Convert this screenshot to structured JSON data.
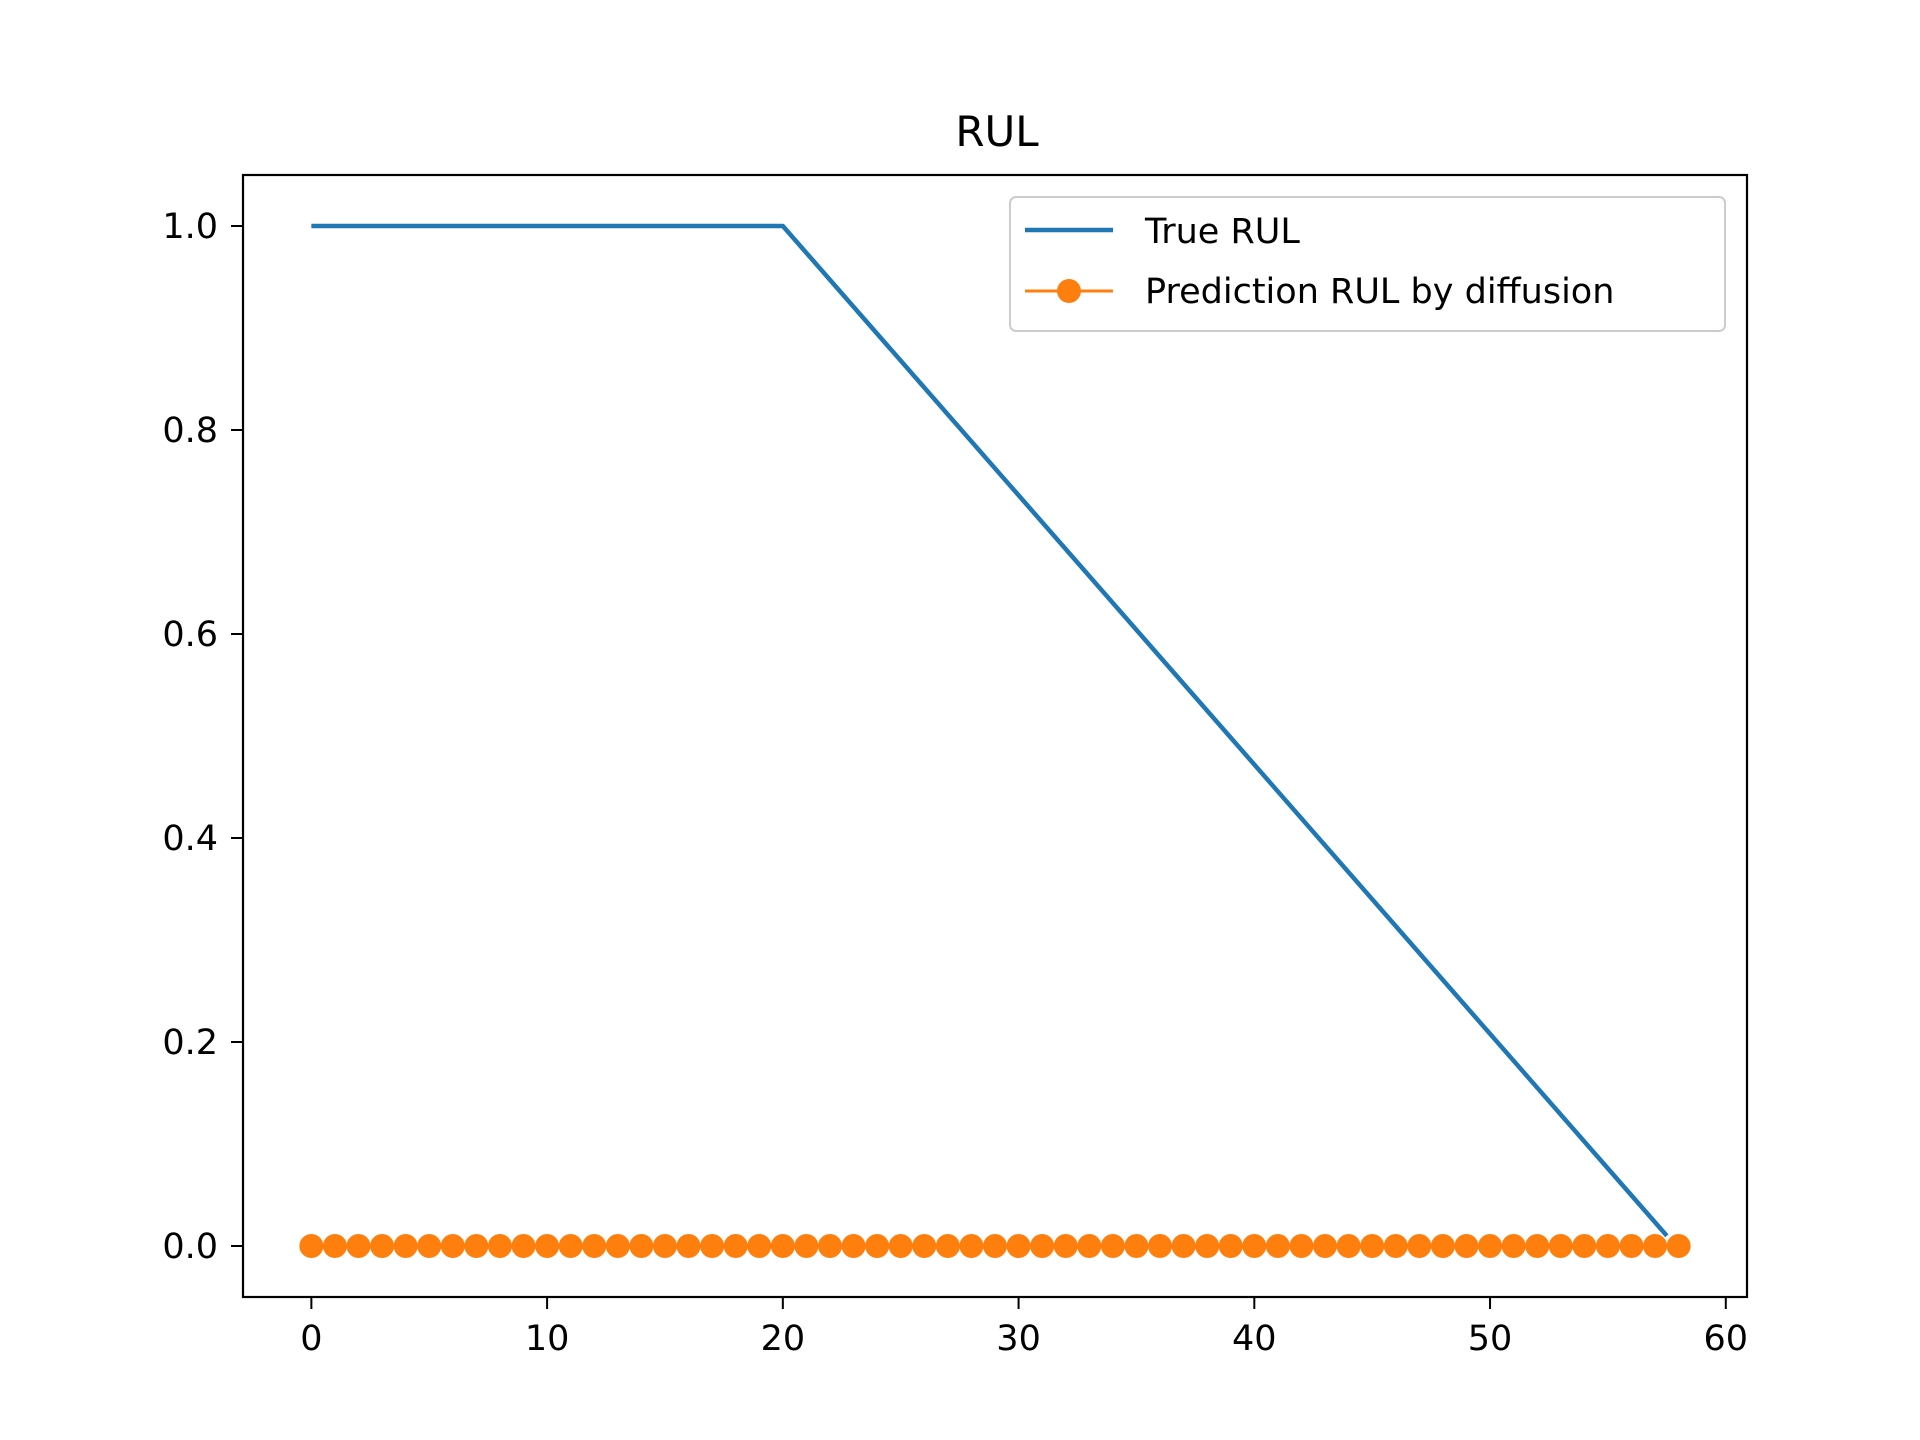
{
  "chart_data": {
    "type": "line",
    "title": "RUL",
    "xlabel": "",
    "ylabel": "",
    "xlim": [
      -2.9,
      60.9
    ],
    "ylim": [
      -0.05,
      1.05
    ],
    "xticks": [
      0,
      10,
      20,
      30,
      40,
      50,
      60
    ],
    "xtick_labels": [
      "0",
      "10",
      "20",
      "30",
      "40",
      "50",
      "60"
    ],
    "yticks": [
      0.0,
      0.2,
      0.4,
      0.6,
      0.8,
      1.0
    ],
    "ytick_labels": [
      "0.0",
      "0.2",
      "0.4",
      "0.6",
      "0.8",
      "1.0"
    ],
    "grid": false,
    "legend_position": "top-right",
    "series": [
      {
        "name": "True RUL",
        "color": "#1f77b4",
        "marker": "none",
        "x": [
          0,
          20,
          57.5
        ],
        "y": [
          1.0,
          1.0,
          0.01
        ]
      },
      {
        "name": "Prediction RUL by diffusion",
        "color": "#ff7f0e",
        "marker": "circle",
        "x": [
          0,
          1,
          2,
          3,
          4,
          5,
          6,
          7,
          8,
          9,
          10,
          11,
          12,
          13,
          14,
          15,
          16,
          17,
          18,
          19,
          20,
          21,
          22,
          23,
          24,
          25,
          26,
          27,
          28,
          29,
          30,
          31,
          32,
          33,
          34,
          35,
          36,
          37,
          38,
          39,
          40,
          41,
          42,
          43,
          44,
          45,
          46,
          47,
          48,
          49,
          50,
          51,
          52,
          53,
          54,
          55,
          56,
          57,
          58
        ],
        "y": [
          0,
          0,
          0,
          0,
          0,
          0,
          0,
          0,
          0,
          0,
          0,
          0,
          0,
          0,
          0,
          0,
          0,
          0,
          0,
          0,
          0,
          0,
          0,
          0,
          0,
          0,
          0,
          0,
          0,
          0,
          0,
          0,
          0,
          0,
          0,
          0,
          0,
          0,
          0,
          0,
          0,
          0,
          0,
          0,
          0,
          0,
          0,
          0,
          0,
          0,
          0,
          0,
          0,
          0,
          0,
          0,
          0,
          0,
          0
        ]
      }
    ]
  }
}
